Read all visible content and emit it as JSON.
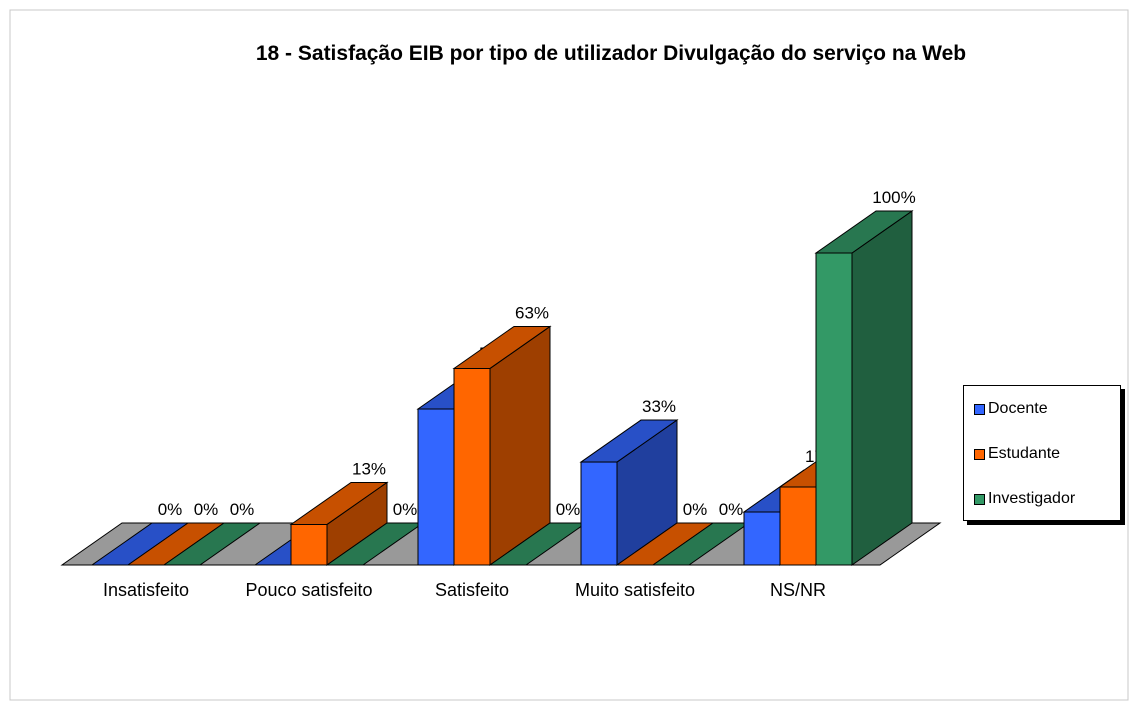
{
  "chart_data": {
    "type": "bar3d",
    "title": "18 - Satisfação EIB por tipo de utilizador Divulgação do serviço na Web",
    "categories": [
      "Insatisfeito",
      "Pouco satisfeito",
      "Satisfeito",
      "Muito satisfeito",
      "NS/NR"
    ],
    "series": [
      {
        "name": "Docente",
        "color": "#3366ff",
        "values": [
          0,
          0,
          50,
          33,
          17
        ],
        "value_labels": [
          "0%",
          "0%",
          "50%",
          "33%",
          "17%"
        ]
      },
      {
        "name": "Estudante",
        "color": "#ff6600",
        "values": [
          0,
          13,
          63,
          0,
          25
        ],
        "value_labels": [
          "0%",
          "13%",
          "63%",
          "0%",
          "25%"
        ]
      },
      {
        "name": "Investigador",
        "color": "#339966",
        "values": [
          0,
          0,
          0,
          0,
          100
        ],
        "value_labels": [
          "0%",
          "0%",
          "0%",
          "0%",
          "100%"
        ]
      }
    ],
    "ylim": [
      0,
      100
    ],
    "legend": "right"
  }
}
